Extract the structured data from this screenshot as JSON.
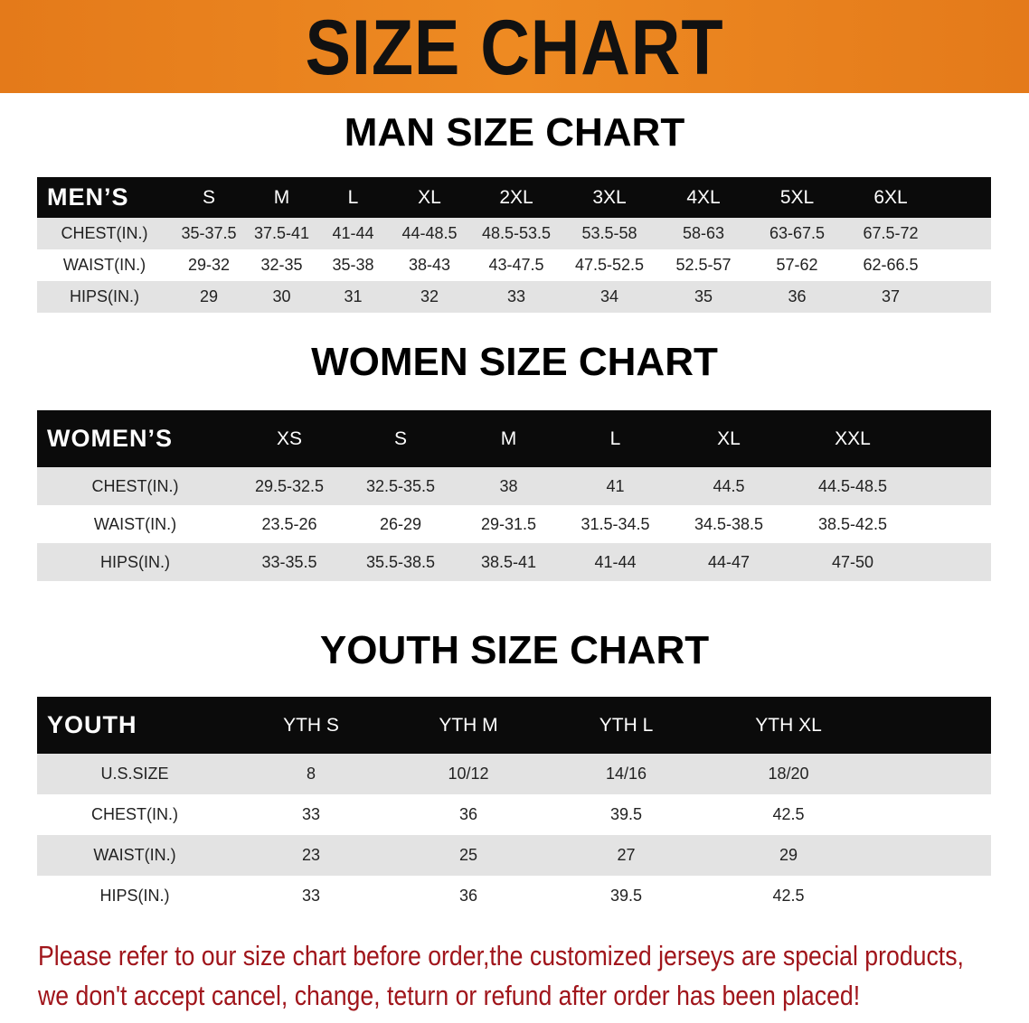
{
  "title": "SIZE CHART",
  "men": {
    "title": "MAN SIZE CHART",
    "header": [
      "MEN’S",
      "S",
      "M",
      "L",
      "XL",
      "2XL",
      "3XL",
      "4XL",
      "5XL",
      "6XL"
    ],
    "rows": [
      [
        "CHEST(IN.)",
        "35-37.5",
        "37.5-41",
        "41-44",
        "44-48.5",
        "48.5-53.5",
        "53.5-58",
        "58-63",
        "63-67.5",
        "67.5-72"
      ],
      [
        "WAIST(IN.)",
        "29-32",
        "32-35",
        "35-38",
        "38-43",
        "43-47.5",
        "47.5-52.5",
        "52.5-57",
        "57-62",
        "62-66.5"
      ],
      [
        "HIPS(IN.)",
        "29",
        "30",
        "31",
        "32",
        "33",
        "34",
        "35",
        "36",
        "37"
      ]
    ]
  },
  "women": {
    "title": "WOMEN SIZE CHART",
    "header": [
      "WOMEN’S",
      "XS",
      "S",
      "M",
      "L",
      "XL",
      "XXL"
    ],
    "rows": [
      [
        "CHEST(IN.)",
        "29.5-32.5",
        "32.5-35.5",
        "38",
        "41",
        "44.5",
        "44.5-48.5"
      ],
      [
        "WAIST(IN.)",
        "23.5-26",
        "26-29",
        "29-31.5",
        "31.5-34.5",
        "34.5-38.5",
        "38.5-42.5"
      ],
      [
        "HIPS(IN.)",
        "33-35.5",
        "35.5-38.5",
        "38.5-41",
        "41-44",
        "44-47",
        "47-50"
      ]
    ]
  },
  "youth": {
    "title": "YOUTH SIZE CHART",
    "header": [
      "YOUTH",
      "YTH S",
      "YTH M",
      "YTH L",
      "YTH XL"
    ],
    "rows": [
      [
        "U.S.SIZE",
        "8",
        "10/12",
        "14/16",
        "18/20"
      ],
      [
        "CHEST(IN.)",
        "33",
        "36",
        "39.5",
        "42.5"
      ],
      [
        "WAIST(IN.)",
        "23",
        "25",
        "27",
        "29"
      ],
      [
        "HIPS(IN.)",
        "33",
        "36",
        "39.5",
        "42.5"
      ]
    ]
  },
  "note": {
    "line1": "Please refer to our size chart before order,the customized jerseys are special products,",
    "line2": "we don't accept cancel, change, teturn or refund after order has been placed!"
  },
  "colors": {
    "banner": "#e8821e",
    "header_bg": "#0b0b0b",
    "stripe": "#e3e3e3",
    "note": "#a0151b"
  }
}
